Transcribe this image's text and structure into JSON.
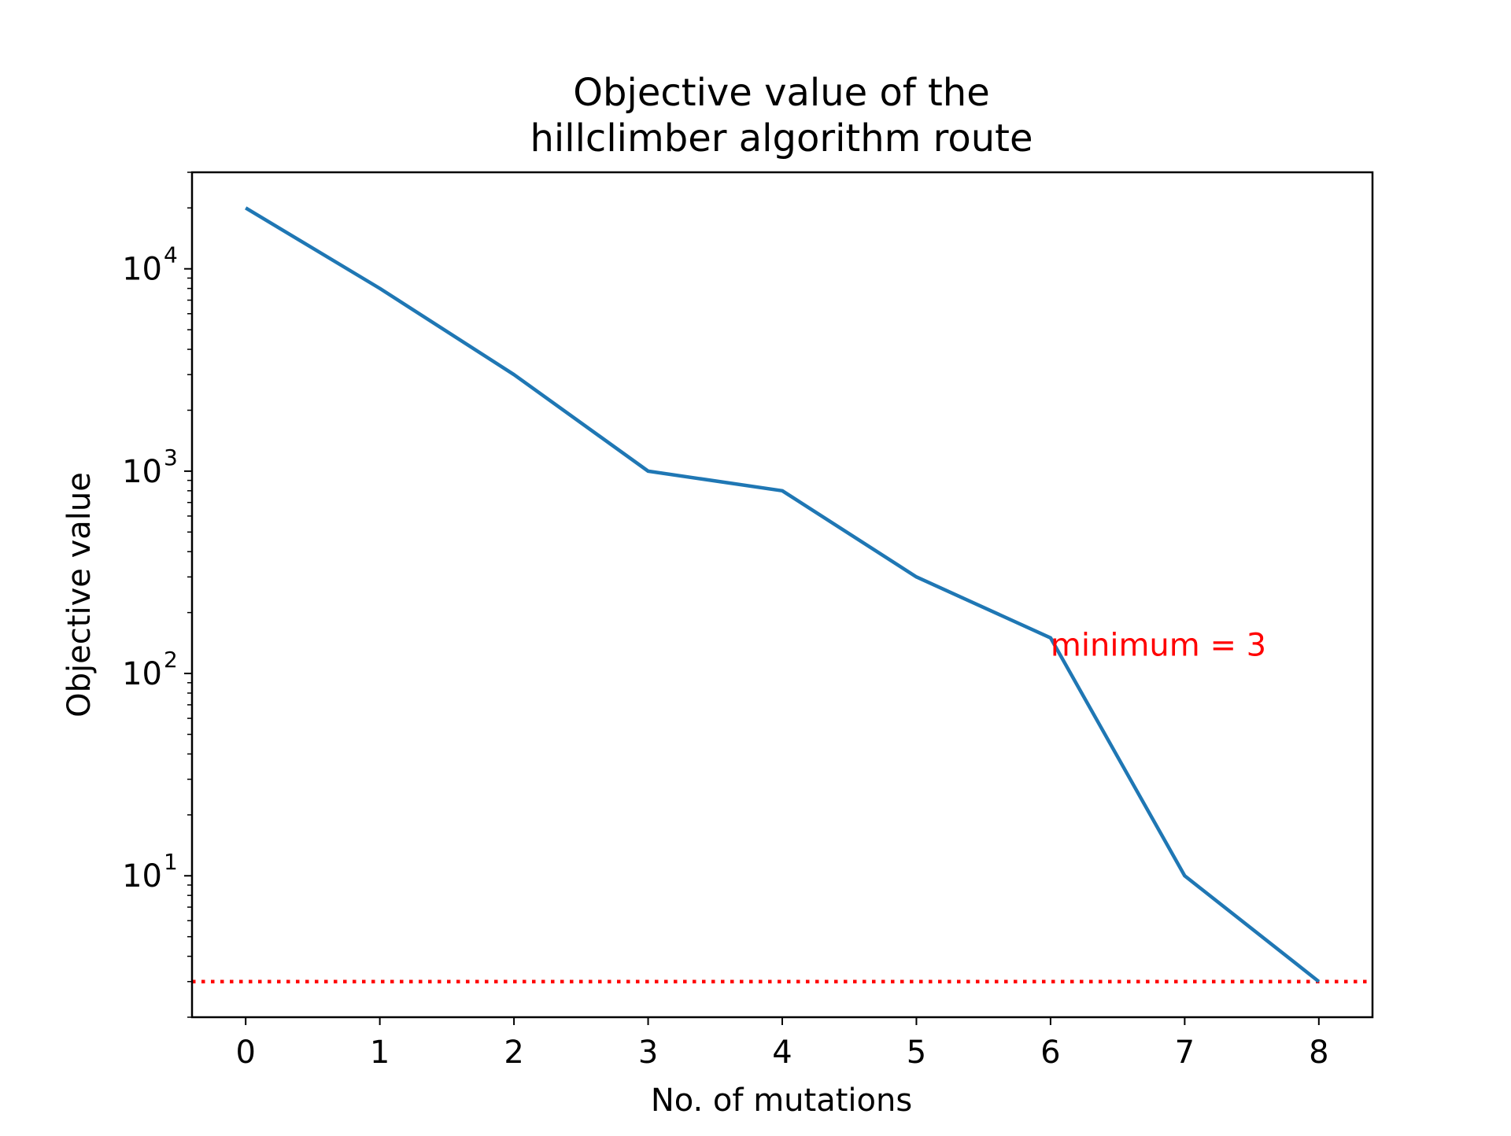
{
  "chart_data": {
    "type": "line",
    "title_lines": [
      "Objective value of the",
      "hillclimber algorithm route"
    ],
    "xlabel": "No. of mutations",
    "ylabel": "Objective value",
    "y_scale": "log",
    "ylim": [
      2,
      30000
    ],
    "xlim": [
      -0.4,
      8.4
    ],
    "x": [
      0,
      1,
      2,
      3,
      4,
      5,
      6,
      7,
      8
    ],
    "y_ticks": [
      {
        "value": 10,
        "base": "10",
        "exp": "1"
      },
      {
        "value": 100,
        "base": "10",
        "exp": "2"
      },
      {
        "value": 1000,
        "base": "10",
        "exp": "3"
      },
      {
        "value": 10000,
        "base": "10",
        "exp": "4"
      }
    ],
    "series": [
      {
        "values": [
          20000,
          8000,
          3000,
          1000,
          800,
          300,
          150,
          10,
          3
        ],
        "color": "#1f77b4"
      }
    ],
    "reference_line": {
      "y": 3,
      "color": "#ff0000",
      "style": "dotted"
    },
    "annotation": {
      "text": "minimum = 3",
      "x": 6,
      "y": 110,
      "color": "#ff0000"
    },
    "grid": false
  }
}
